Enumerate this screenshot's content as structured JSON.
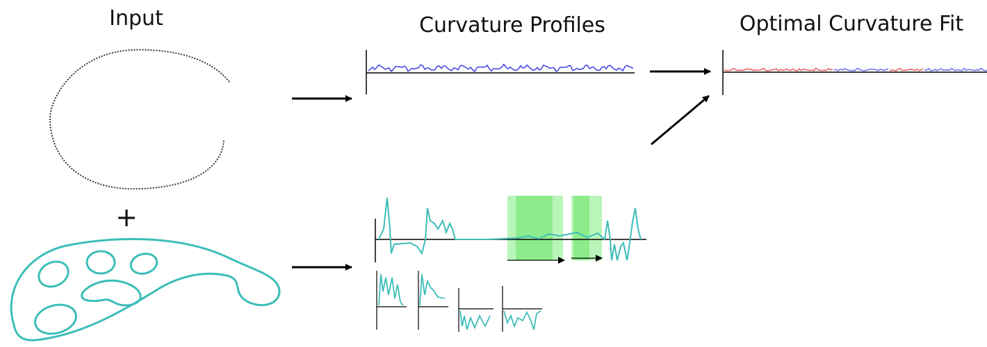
{
  "labels": {
    "input": "Input",
    "plus": "+",
    "profiles": "Curvature Profiles",
    "fit": "Optimal Curvature Fit"
  }
}
